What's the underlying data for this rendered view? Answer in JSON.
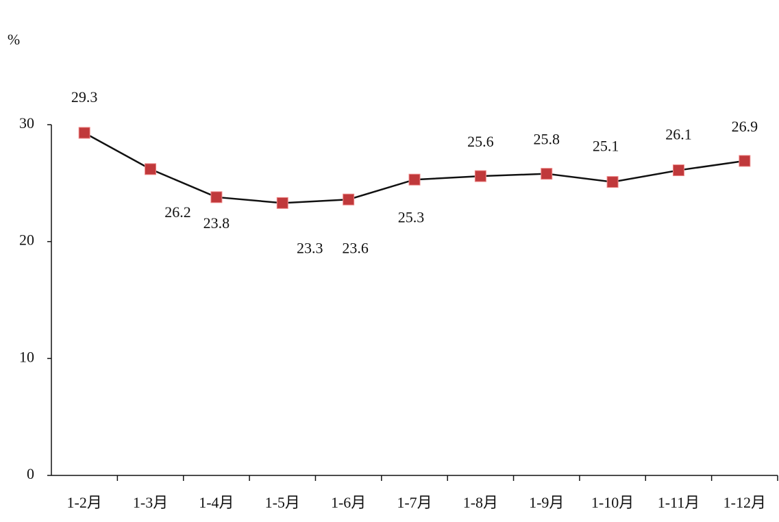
{
  "chart_data": {
    "type": "line",
    "unit_label": "%",
    "categories": [
      "1-2月",
      "1-3月",
      "1-4月",
      "1-5月",
      "1-6月",
      "1-7月",
      "1-8月",
      "1-9月",
      "1-10月",
      "1-11月",
      "1-12月"
    ],
    "series": [
      {
        "color": "#c0393b",
        "values": [
          29.3,
          26.2,
          23.8,
          23.3,
          23.6,
          25.3,
          25.6,
          25.8,
          25.1,
          26.1,
          26.9
        ]
      }
    ],
    "ylim": [
      0,
      30
    ],
    "yticks": [
      0,
      10,
      20,
      30
    ],
    "grid": false
  }
}
